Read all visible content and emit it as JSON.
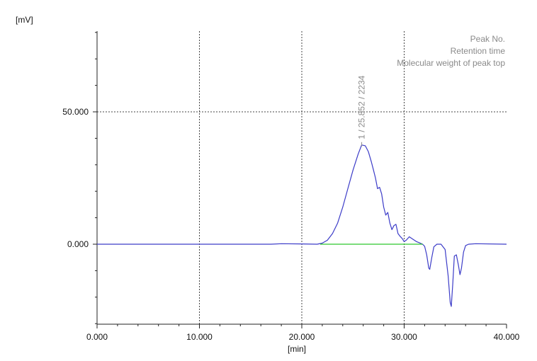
{
  "chart_data": {
    "type": "line",
    "xlabel": "[min]",
    "ylabel": "[mV]",
    "xlim": [
      0,
      40
    ],
    "ylim": [
      -30,
      80
    ],
    "x_ticks": [
      {
        "value": 0,
        "label": "0.000"
      },
      {
        "value": 10,
        "label": "10.000"
      },
      {
        "value": 20,
        "label": "20.000"
      },
      {
        "value": 30,
        "label": "30.000"
      },
      {
        "value": 40,
        "label": "40.000"
      }
    ],
    "y_ticks": [
      {
        "value": 0,
        "label": "0.000"
      },
      {
        "value": 50,
        "label": "50.000"
      }
    ],
    "grid": true,
    "legend": {
      "placement": "top-right",
      "entries": [
        "Peak No.",
        "Retention time",
        "Molecular weight of peak top"
      ]
    },
    "peak_annotation": {
      "x": 25.852,
      "text": "1  /  25.852  /  2234"
    },
    "series": [
      {
        "color": "#3c3cc8",
        "points": [
          [
            0,
            0
          ],
          [
            4,
            0
          ],
          [
            6,
            0
          ],
          [
            10,
            0
          ],
          [
            12.5,
            0
          ],
          [
            15,
            0
          ],
          [
            17,
            0
          ],
          [
            18,
            0.2
          ],
          [
            20,
            0.1
          ],
          [
            21.5,
            0
          ],
          [
            22,
            0.4
          ],
          [
            22.5,
            1.5
          ],
          [
            23,
            4
          ],
          [
            23.5,
            8
          ],
          [
            24,
            14
          ],
          [
            24.5,
            21
          ],
          [
            25,
            28
          ],
          [
            25.5,
            34
          ],
          [
            25.85,
            37.5
          ],
          [
            26.2,
            37.2
          ],
          [
            26.5,
            35
          ],
          [
            26.8,
            31
          ],
          [
            27.0,
            28
          ],
          [
            27.2,
            25
          ],
          [
            27.4,
            21
          ],
          [
            27.6,
            21.5
          ],
          [
            27.8,
            19
          ],
          [
            28.0,
            14
          ],
          [
            28.2,
            11
          ],
          [
            28.4,
            12
          ],
          [
            28.6,
            8
          ],
          [
            28.8,
            5.5
          ],
          [
            29.0,
            7
          ],
          [
            29.2,
            7.5
          ],
          [
            29.4,
            4
          ],
          [
            29.6,
            3
          ],
          [
            29.8,
            2.2
          ],
          [
            30.0,
            1
          ],
          [
            30.2,
            1.5
          ],
          [
            30.5,
            2.8
          ],
          [
            30.8,
            2
          ],
          [
            31.2,
            1
          ],
          [
            31.5,
            0.5
          ],
          [
            31.8,
            0
          ],
          [
            32.0,
            -0.8
          ],
          [
            32.2,
            -4
          ],
          [
            32.4,
            -9
          ],
          [
            32.5,
            -9.5
          ],
          [
            32.7,
            -5
          ],
          [
            32.9,
            -1
          ],
          [
            33.2,
            0
          ],
          [
            33.6,
            0
          ],
          [
            34.0,
            -2
          ],
          [
            34.3,
            -12
          ],
          [
            34.5,
            -22
          ],
          [
            34.6,
            -23.5
          ],
          [
            34.75,
            -15
          ],
          [
            34.9,
            -4.5
          ],
          [
            35.1,
            -4
          ],
          [
            35.3,
            -8
          ],
          [
            35.45,
            -11.5
          ],
          [
            35.6,
            -9
          ],
          [
            35.8,
            -3
          ],
          [
            36.0,
            -0.5
          ],
          [
            36.3,
            0
          ],
          [
            37,
            0.2
          ],
          [
            40,
            0
          ]
        ]
      },
      {
        "color": "#2ec82e",
        "points": [
          [
            21.8,
            0
          ],
          [
            31.8,
            0
          ]
        ]
      }
    ]
  }
}
